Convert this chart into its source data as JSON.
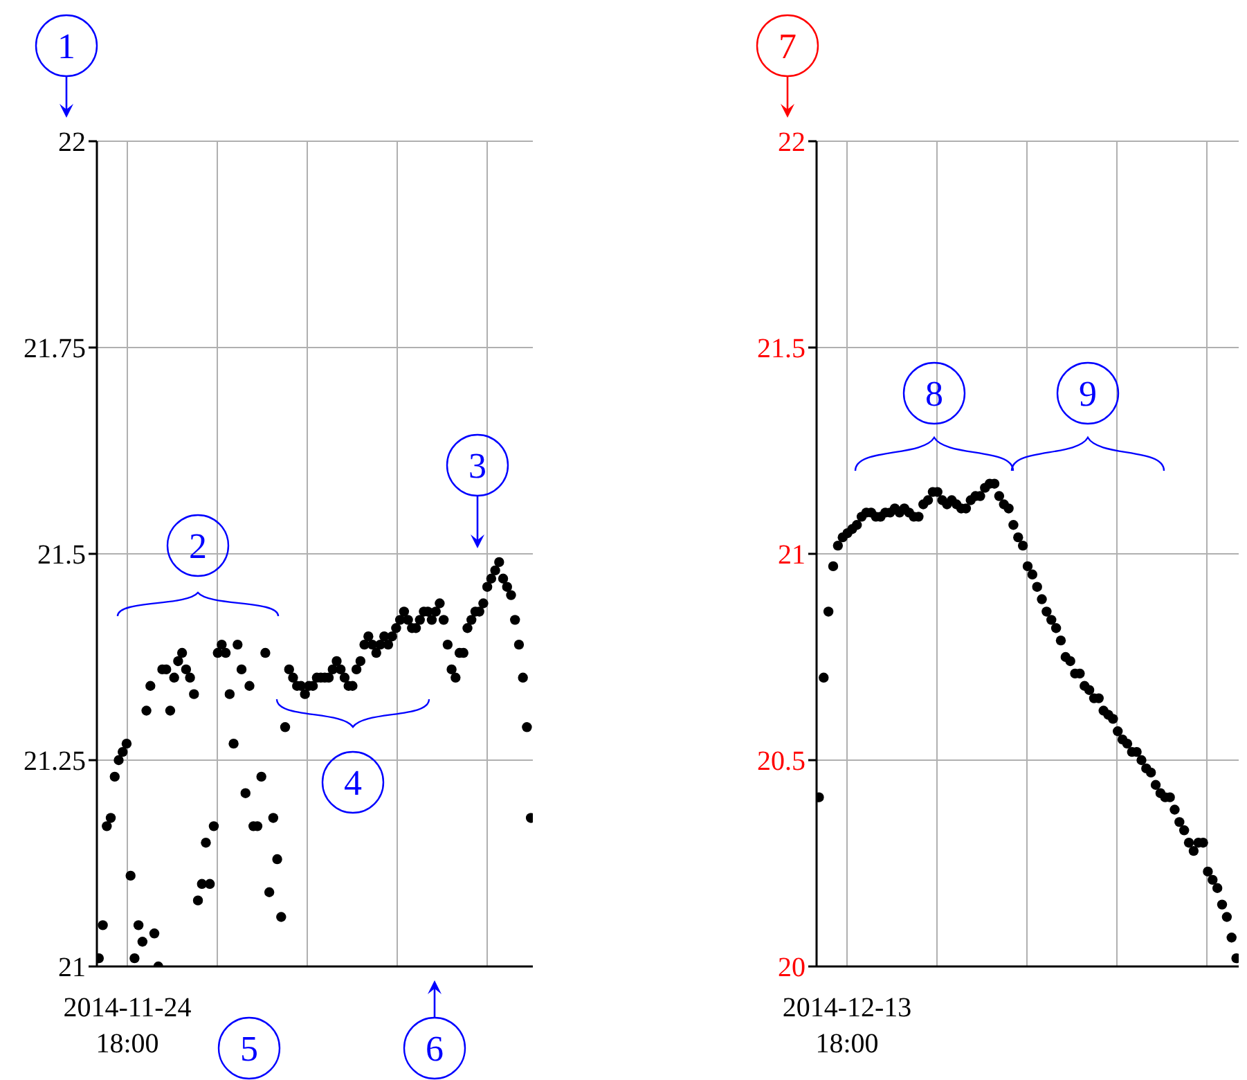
{
  "chart_data": [
    {
      "type": "scatter",
      "color": "#000000",
      "marker": "circle",
      "grid": true,
      "ylim": [
        21,
        22
      ],
      "yticks": [
        21,
        21.25,
        21.5,
        21.75,
        22
      ],
      "categories": [
        null,
        null,
        null,
        null,
        null,
        null,
        null,
        null,
        null,
        null,
        null,
        null,
        null,
        null,
        null,
        null,
        null,
        null,
        null,
        null,
        null,
        null,
        null,
        null,
        null,
        null,
        null,
        null,
        null,
        null,
        null,
        null,
        null,
        null,
        null,
        null,
        null,
        null,
        null,
        null,
        null,
        null,
        null,
        null,
        null,
        null,
        null,
        null,
        null,
        null,
        null,
        null,
        null,
        null,
        null,
        null,
        null,
        null,
        null,
        null,
        null,
        null,
        null,
        null,
        null,
        null,
        null,
        null,
        null,
        null,
        null,
        null,
        null,
        null,
        null,
        null,
        null,
        null,
        null,
        null,
        null,
        null,
        null,
        null,
        null,
        null,
        null,
        null,
        null,
        null,
        null,
        null,
        null,
        null,
        null,
        null,
        null,
        null,
        null,
        null,
        null,
        null,
        null,
        null,
        null,
        null,
        null,
        null,
        null,
        null
      ],
      "values": [
        21.01,
        21.05,
        21.17,
        21.18,
        21.23,
        21.25,
        21.26,
        21.27,
        21.11,
        21.01,
        21.05,
        21.03,
        21.31,
        21.34,
        21.04,
        21.0,
        21.36,
        21.36,
        21.31,
        21.35,
        21.37,
        21.38,
        21.36,
        21.35,
        21.33,
        21.08,
        21.1,
        21.15,
        21.1,
        21.17,
        21.38,
        21.39,
        21.38,
        21.33,
        21.27,
        21.39,
        21.36,
        21.21,
        21.34,
        21.17,
        21.17,
        21.23,
        21.38,
        21.09,
        21.18,
        21.13,
        21.06,
        21.29,
        21.36,
        21.35,
        21.34,
        21.34,
        21.33,
        21.34,
        21.34,
        21.35,
        21.35,
        21.35,
        21.35,
        21.36,
        21.37,
        21.36,
        21.35,
        21.34,
        21.34,
        21.36,
        21.37,
        21.39,
        21.4,
        21.39,
        21.38,
        21.39,
        21.4,
        21.39,
        21.4,
        21.41,
        21.42,
        21.43,
        21.42,
        21.41,
        21.41,
        21.42,
        21.43,
        21.43,
        21.42,
        21.43,
        21.44,
        21.42,
        21.39,
        21.36,
        21.35,
        21.38,
        21.38,
        21.41,
        21.42,
        21.43,
        21.43,
        21.44,
        21.46,
        21.47,
        21.48,
        21.49,
        21.47,
        21.46,
        21.45,
        21.42,
        21.39,
        21.35,
        21.29,
        21.18
      ],
      "annotations": [
        "2014-11-24 18:00",
        "1",
        "2",
        "3",
        "4",
        "5",
        "6"
      ]
    },
    {
      "type": "scatter",
      "color": "#000000",
      "marker": "circle",
      "grid": true,
      "ylim": [
        20,
        22
      ],
      "yticks": [
        20,
        20.5,
        21,
        21.5,
        22
      ],
      "categories": [
        null,
        null,
        null,
        null,
        null,
        null,
        null,
        null,
        null,
        null,
        null,
        null,
        null,
        null,
        null,
        null,
        null,
        null,
        null,
        null,
        null,
        null,
        null,
        null,
        null,
        null,
        null,
        null,
        null,
        null,
        null,
        null,
        null,
        null,
        null,
        null,
        null,
        null,
        null,
        null,
        null,
        null,
        null,
        null,
        null,
        null,
        null,
        null,
        null,
        null,
        null,
        null,
        null,
        null,
        null,
        null,
        null,
        null,
        null,
        null,
        null,
        null,
        null,
        null,
        null,
        null,
        null,
        null,
        null,
        null,
        null,
        null,
        null,
        null,
        null,
        null,
        null,
        null,
        null,
        null,
        null,
        null,
        null,
        null,
        null,
        null,
        null,
        null,
        null
      ],
      "values": [
        20.41,
        20.7,
        20.86,
        20.97,
        21.02,
        21.04,
        21.05,
        21.06,
        21.07,
        21.09,
        21.1,
        21.1,
        21.09,
        21.09,
        21.1,
        21.1,
        21.11,
        21.1,
        21.11,
        21.1,
        21.09,
        21.09,
        21.12,
        21.13,
        21.15,
        21.15,
        21.13,
        21.12,
        21.13,
        21.12,
        21.11,
        21.11,
        21.13,
        21.14,
        21.14,
        21.16,
        21.17,
        21.17,
        21.14,
        21.12,
        21.11,
        21.07,
        21.04,
        21.02,
        20.97,
        20.95,
        20.92,
        20.89,
        20.86,
        20.84,
        20.82,
        20.79,
        20.75,
        20.74,
        20.71,
        20.71,
        20.68,
        20.67,
        20.65,
        20.65,
        20.62,
        20.61,
        20.6,
        20.57,
        20.55,
        20.54,
        20.52,
        20.52,
        20.5,
        20.48,
        20.47,
        20.44,
        20.42,
        20.41,
        20.41,
        20.38,
        20.35,
        20.33,
        20.3,
        20.28,
        20.3,
        20.3,
        20.23,
        20.21,
        20.19,
        20.15,
        20.12,
        20.07,
        20.02
      ],
      "annotations": [
        "2014-12-13 18:00",
        "7",
        "8",
        "9"
      ]
    }
  ]
}
